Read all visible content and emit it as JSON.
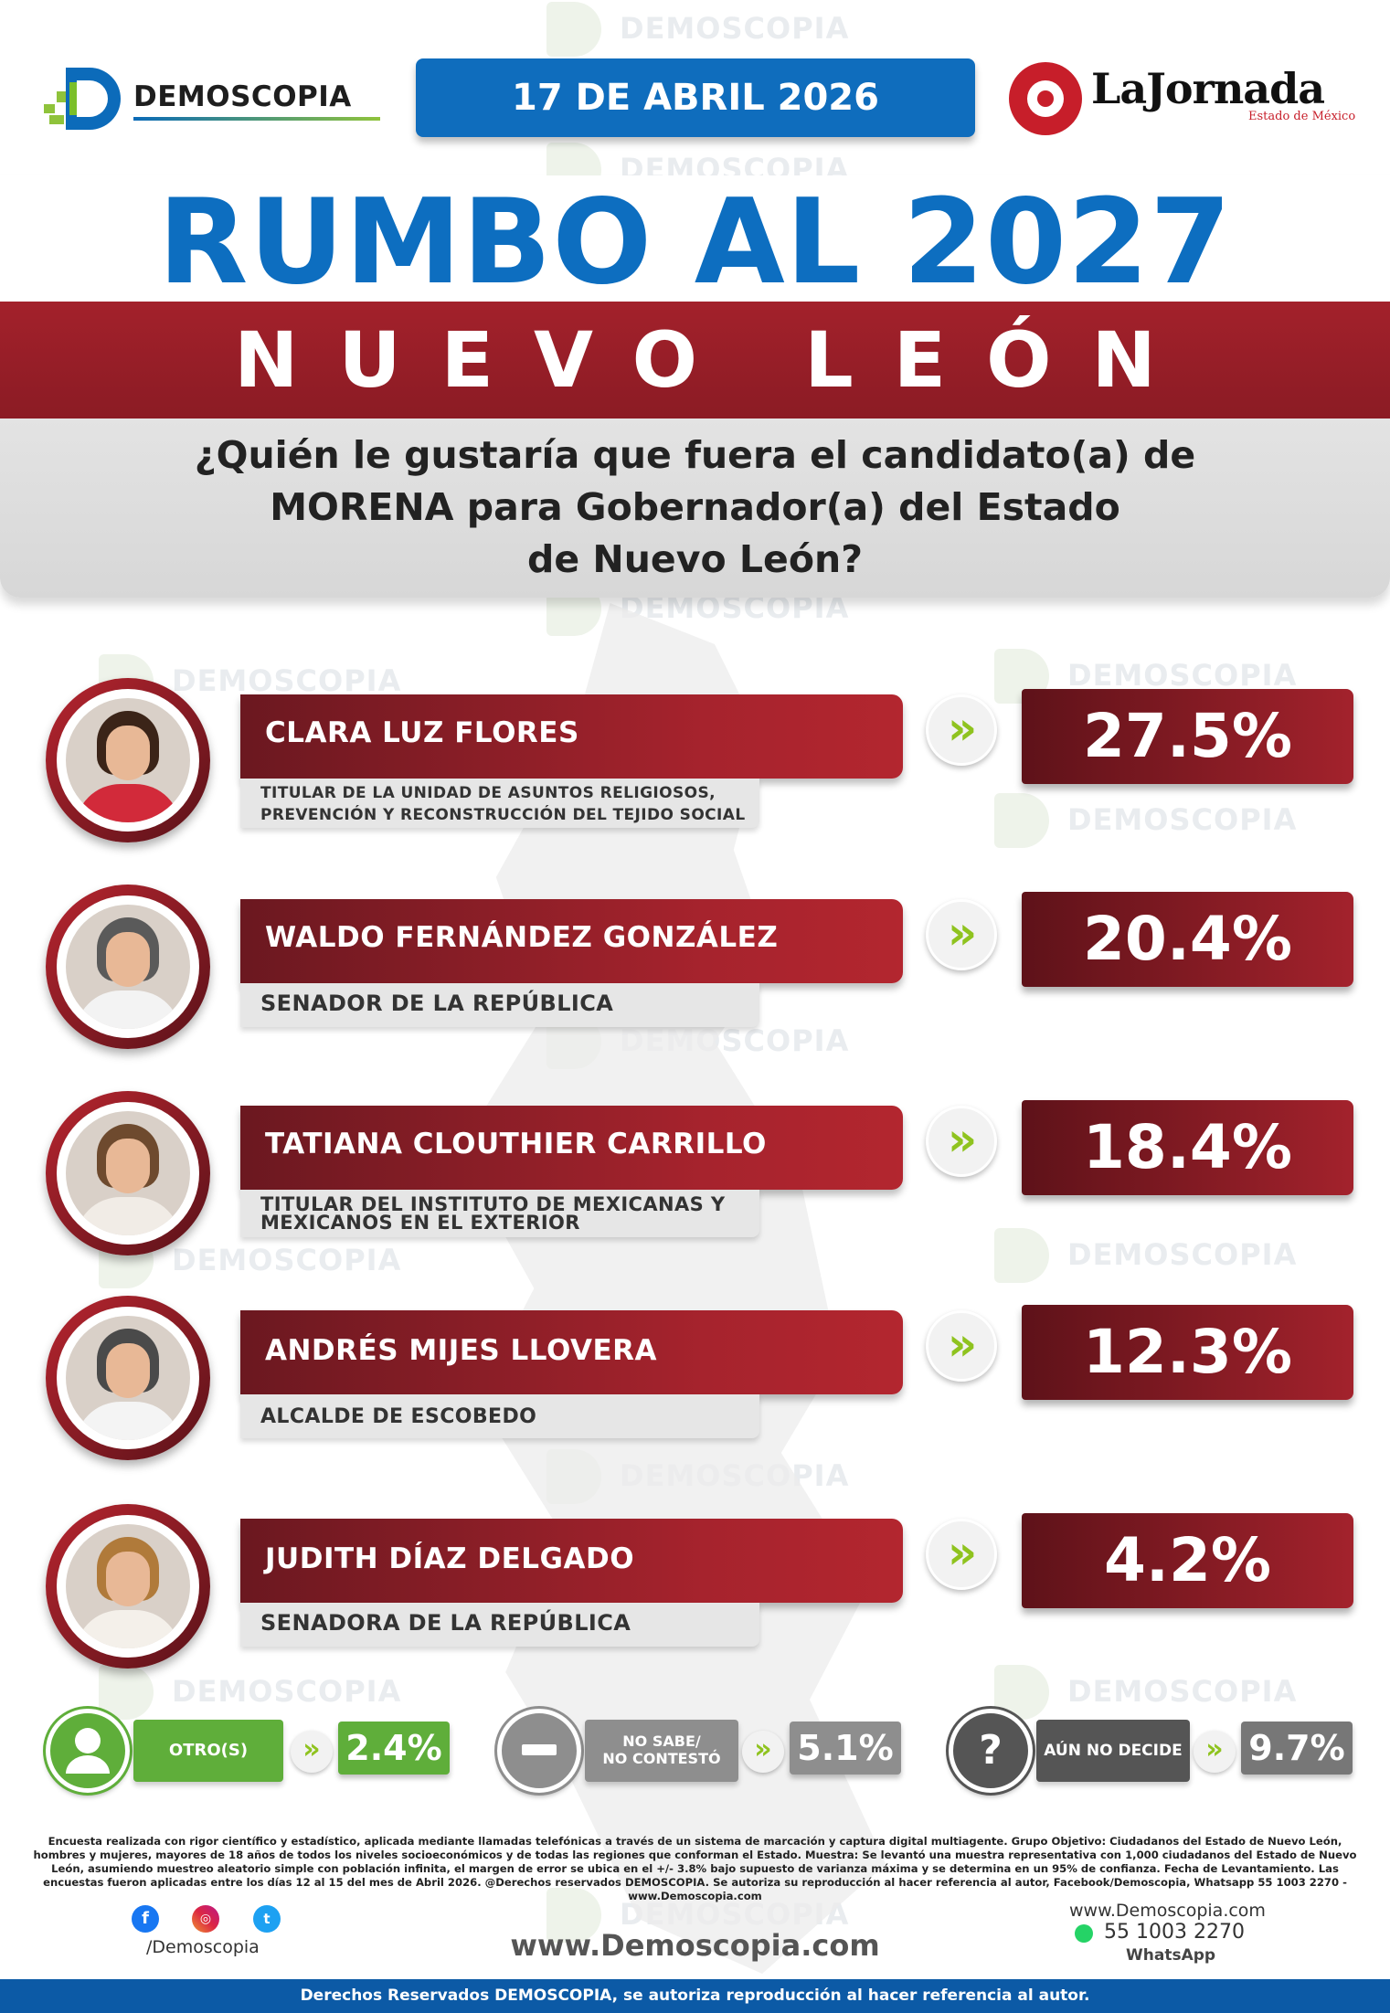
{
  "header": {
    "brand": "DEMOSCOPIA",
    "date": "17 DE ABRIL 2026",
    "partner_title": "LaJornada",
    "partner_subtitle": "Estado de México"
  },
  "title": {
    "main": "RUMBO AL 2027",
    "region": "NUEVO LEÓN",
    "question_lines": [
      "¿Quién le gustaría que fuera el candidato(a) de",
      "MORENA para Gobernador(a) del Estado",
      "de Nuevo León?"
    ]
  },
  "watermark": "DEMOSCOPIA",
  "candidates": [
    {
      "name": "CLARA LUZ FLORES",
      "role": [
        "TITULAR DE LA UNIDAD DE ASUNTOS RELIGIOSOS,",
        "PREVENCIÓN Y RECONSTRUCCIÓN DEL TEJIDO SOCIAL"
      ],
      "value_label": "27.5%"
    },
    {
      "name": "WALDO FERNÁNDEZ GONZÁLEZ",
      "role": [
        "SENADOR DE LA REPÚBLICA"
      ],
      "value_label": "20.4%"
    },
    {
      "name": "TATIANA CLOUTHIER CARRILLO",
      "role": [
        "TITULAR DEL INSTITUTO DE MEXICANAS Y",
        "MEXICANOS EN EL EXTERIOR"
      ],
      "value_label": "18.4%"
    },
    {
      "name": "ANDRÉS MIJES LLOVERA",
      "role": [
        "ALCALDE DE ESCOBEDO"
      ],
      "value_label": "12.3%"
    },
    {
      "name": "JUDITH DÍAZ DELGADO",
      "role": [
        "SENADORA DE LA REPÚBLICA"
      ],
      "value_label": "4.2%"
    }
  ],
  "summary": [
    {
      "label": "OTRO(S)",
      "value": "2.4%",
      "color": "#5fae3a",
      "icon": "person-icon"
    },
    {
      "label": "NO SABE/\nNO CONTESTÓ",
      "value": "5.1%",
      "color": "#8e8e8e",
      "icon": "minus-icon"
    },
    {
      "label": "AÚN NO DECIDE",
      "value": "9.7%",
      "color": "#555555",
      "icon": "question-icon"
    }
  ],
  "chart_data": {
    "type": "bar",
    "title": "RUMBO AL 2027 NUEVO LEÓN",
    "categories": [
      "CLARA LUZ FLORES",
      "WALDO FERNÁNDEZ GONZÁLEZ",
      "TATIANA CLOUTHIER CARRILLO",
      "ANDRÉS MIJES LLOVERA",
      "JUDITH DÍAZ DELGADO",
      "OTRO(S)",
      "NO SABE/NO CONTESTÓ",
      "AÚN NO DECIDE"
    ],
    "values": [
      27.5,
      20.4,
      18.4,
      12.3,
      4.2,
      2.4,
      5.1,
      9.7
    ],
    "unit": "%"
  },
  "footer": {
    "methodology": "Encuesta realizada con rigor científico y estadístico, aplicada mediante llamadas telefónicas a través de un sistema de marcación y captura digital multiagente. Grupo Objetivo: Ciudadanos del Estado de Nuevo León, hombres y mujeres, mayores de 18 años de todos los niveles socioeconómicos y de todas las regiones que conforman el Estado. Muestra: Se levantó una muestra representativa con 1,000 ciudadanos del Estado de Nuevo León, asumiendo muestreo aleatorio simple con población infinita, el margen de error se ubica en el +/- 3.8% bajo supuesto de varianza máxima y se determina en un 95% de confianza. Fecha de Levantamiento. Las encuestas fueron aplicadas entre los días 12 al 15 del mes de Abril 2026. @Derechos reservados DEMOSCOPIA. Se autoriza su reproducción al hacer referencia al autor, Facebook/Demoscopia, Whatsapp 55 1003 2270 - www.Demoscopia.com",
    "social_handle": "/Demoscopia",
    "website_center": "www.Demoscopia.com",
    "website_right": "www.Demoscopia.com",
    "phone": "55 1003 2270",
    "whatsapp_label": "WhatsApp",
    "rights": "Derechos Reservados DEMOSCOPIA, se autoriza reproducción al hacer referencia al autor."
  },
  "colors": {
    "blue": "#0d6ec0",
    "red": "#a3222c",
    "green": "#8fc31f"
  }
}
